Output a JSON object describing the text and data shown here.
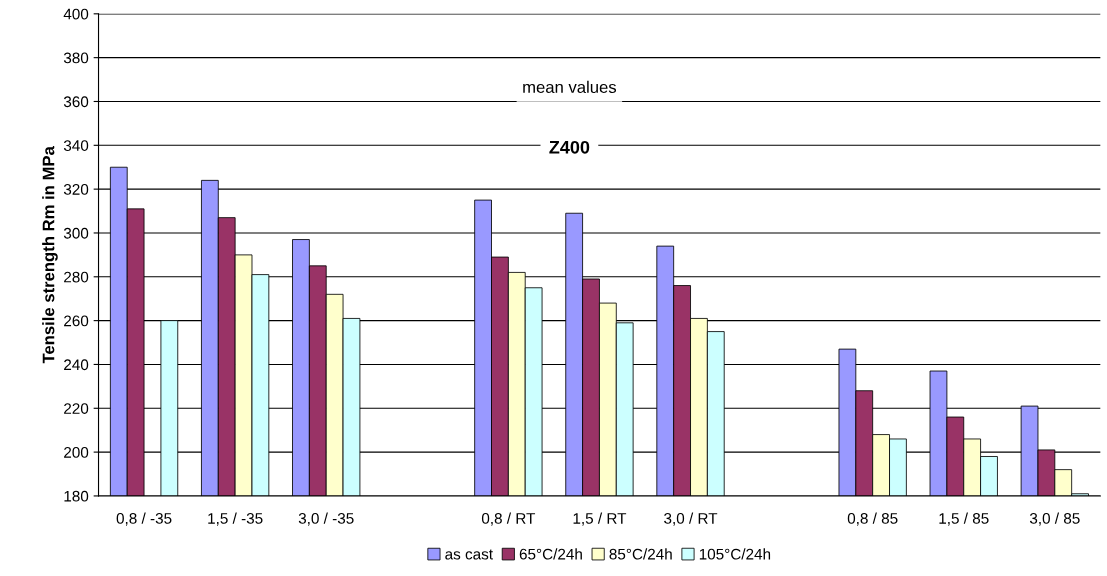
{
  "chart_data": {
    "type": "bar",
    "ylabel": "Tensile strength Rm in MPa",
    "categories": [
      "0,8 / -35",
      "1,5 / -35",
      "3,0 / -35",
      null,
      "0,8 / RT",
      "1,5 / RT",
      "3,0 / RT",
      null,
      "0,8 / 85",
      "1,5 / 85",
      "3,0 / 85"
    ],
    "series": [
      {
        "name": "as cast",
        "color": "#9999ff",
        "values": [
          330,
          324,
          297,
          null,
          315,
          309,
          294,
          null,
          247,
          237,
          221
        ]
      },
      {
        "name": "65°C/24h",
        "color": "#993366",
        "values": [
          311,
          307,
          285,
          null,
          289,
          279,
          276,
          null,
          228,
          216,
          201
        ]
      },
      {
        "name": "85°C/24h",
        "color": "#ffffcc",
        "values": [
          null,
          290,
          272,
          null,
          282,
          268,
          261,
          null,
          208,
          206,
          192
        ]
      },
      {
        "name": "105°C/24h",
        "color": "#ccffff",
        "values": [
          260,
          281,
          261,
          null,
          275,
          259,
          255,
          null,
          206,
          198,
          181
        ]
      }
    ],
    "annotations": [
      "mean values",
      "Z400"
    ],
    "ylim": [
      180,
      400
    ],
    "yticks": [
      180,
      200,
      220,
      240,
      260,
      280,
      300,
      320,
      340,
      360,
      380,
      400
    ],
    "grid": "y",
    "legend": "bottom"
  }
}
